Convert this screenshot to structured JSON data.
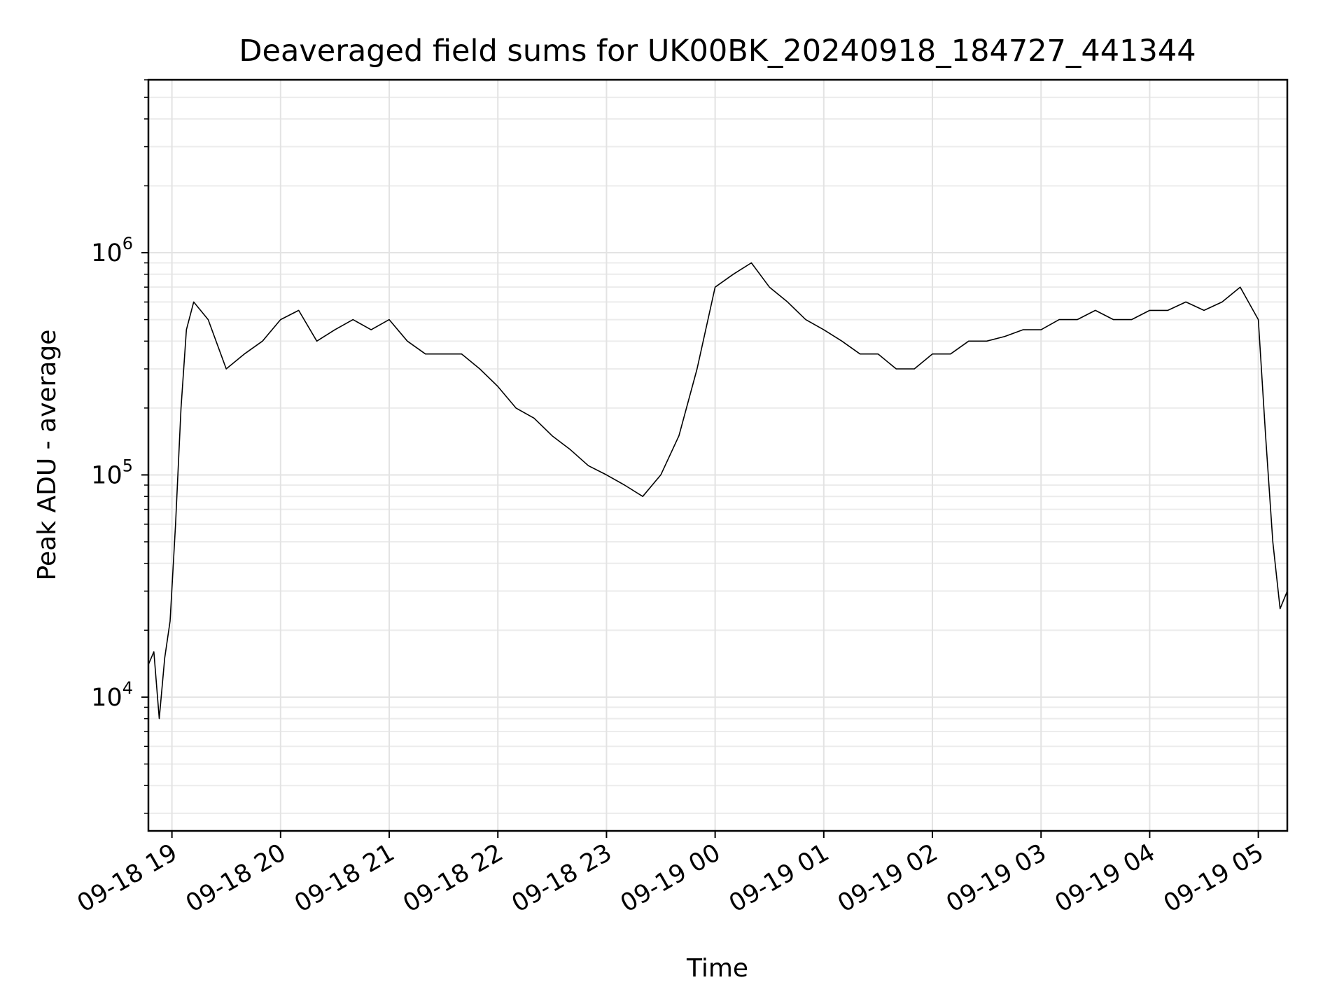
{
  "chart_data": {
    "type": "line",
    "title": "Deaveraged field sums for UK00BK_20240918_184727_441344",
    "xlabel": "Time",
    "ylabel": "Peak ADU - average",
    "yscale": "log",
    "ylim": [
      2500,
      6000000
    ],
    "xlim": [
      "2024-09-18 18:47",
      "2024-09-19 05:16"
    ],
    "x_ticks": [
      {
        "value": "2024-09-18 19:00",
        "label": "09-18 19"
      },
      {
        "value": "2024-09-18 20:00",
        "label": "09-18 20"
      },
      {
        "value": "2024-09-18 21:00",
        "label": "09-18 21"
      },
      {
        "value": "2024-09-18 22:00",
        "label": "09-18 22"
      },
      {
        "value": "2024-09-18 23:00",
        "label": "09-18 23"
      },
      {
        "value": "2024-09-19 00:00",
        "label": "09-19 00"
      },
      {
        "value": "2024-09-19 01:00",
        "label": "09-19 01"
      },
      {
        "value": "2024-09-19 02:00",
        "label": "09-19 02"
      },
      {
        "value": "2024-09-19 03:00",
        "label": "09-19 03"
      },
      {
        "value": "2024-09-19 04:00",
        "label": "09-19 04"
      },
      {
        "value": "2024-09-19 05:00",
        "label": "09-19 05"
      }
    ],
    "y_ticks": [
      {
        "value": 10000,
        "base": "10",
        "exponent": "4"
      },
      {
        "value": 100000,
        "base": "10",
        "exponent": "5"
      },
      {
        "value": 1000000,
        "base": "10",
        "exponent": "6"
      }
    ],
    "grid": true,
    "series": [
      {
        "color": "#000000",
        "x": [
          "2024-09-18 18:47",
          "2024-09-18 18:50",
          "2024-09-18 18:53",
          "2024-09-18 18:56",
          "2024-09-18 18:59",
          "2024-09-18 19:02",
          "2024-09-18 19:05",
          "2024-09-18 19:08",
          "2024-09-18 19:12",
          "2024-09-18 19:20",
          "2024-09-18 19:30",
          "2024-09-18 19:40",
          "2024-09-18 19:50",
          "2024-09-18 20:00",
          "2024-09-18 20:10",
          "2024-09-18 20:20",
          "2024-09-18 20:30",
          "2024-09-18 20:40",
          "2024-09-18 20:50",
          "2024-09-18 21:00",
          "2024-09-18 21:10",
          "2024-09-18 21:20",
          "2024-09-18 21:30",
          "2024-09-18 21:40",
          "2024-09-18 21:50",
          "2024-09-18 22:00",
          "2024-09-18 22:10",
          "2024-09-18 22:20",
          "2024-09-18 22:30",
          "2024-09-18 22:40",
          "2024-09-18 22:50",
          "2024-09-18 23:00",
          "2024-09-18 23:10",
          "2024-09-18 23:20",
          "2024-09-18 23:30",
          "2024-09-18 23:40",
          "2024-09-18 23:50",
          "2024-09-19 00:00",
          "2024-09-19 00:10",
          "2024-09-19 00:20",
          "2024-09-19 00:30",
          "2024-09-19 00:40",
          "2024-09-19 00:50",
          "2024-09-19 01:00",
          "2024-09-19 01:10",
          "2024-09-19 01:20",
          "2024-09-19 01:30",
          "2024-09-19 01:40",
          "2024-09-19 01:50",
          "2024-09-19 02:00",
          "2024-09-19 02:10",
          "2024-09-19 02:20",
          "2024-09-19 02:30",
          "2024-09-19 02:40",
          "2024-09-19 02:50",
          "2024-09-19 03:00",
          "2024-09-19 03:10",
          "2024-09-19 03:20",
          "2024-09-19 03:30",
          "2024-09-19 03:40",
          "2024-09-19 03:50",
          "2024-09-19 04:00",
          "2024-09-19 04:10",
          "2024-09-19 04:20",
          "2024-09-19 04:30",
          "2024-09-19 04:40",
          "2024-09-19 04:50",
          "2024-09-19 05:00",
          "2024-09-19 05:04",
          "2024-09-19 05:08",
          "2024-09-19 05:12",
          "2024-09-19 05:16"
        ],
        "y": [
          14000,
          16000,
          8000,
          15000,
          22000,
          60000,
          200000,
          450000,
          600000,
          500000,
          300000,
          350000,
          400000,
          500000,
          550000,
          400000,
          450000,
          500000,
          450000,
          500000,
          400000,
          350000,
          350000,
          350000,
          300000,
          250000,
          200000,
          180000,
          150000,
          130000,
          110000,
          100000,
          90000,
          80000,
          100000,
          150000,
          300000,
          700000,
          800000,
          900000,
          700000,
          600000,
          500000,
          450000,
          400000,
          350000,
          350000,
          300000,
          300000,
          350000,
          350000,
          400000,
          400000,
          420000,
          450000,
          450000,
          500000,
          500000,
          550000,
          500000,
          500000,
          550000,
          550000,
          600000,
          550000,
          600000,
          700000,
          500000,
          150000,
          50000,
          25000,
          30000
        ]
      }
    ]
  }
}
